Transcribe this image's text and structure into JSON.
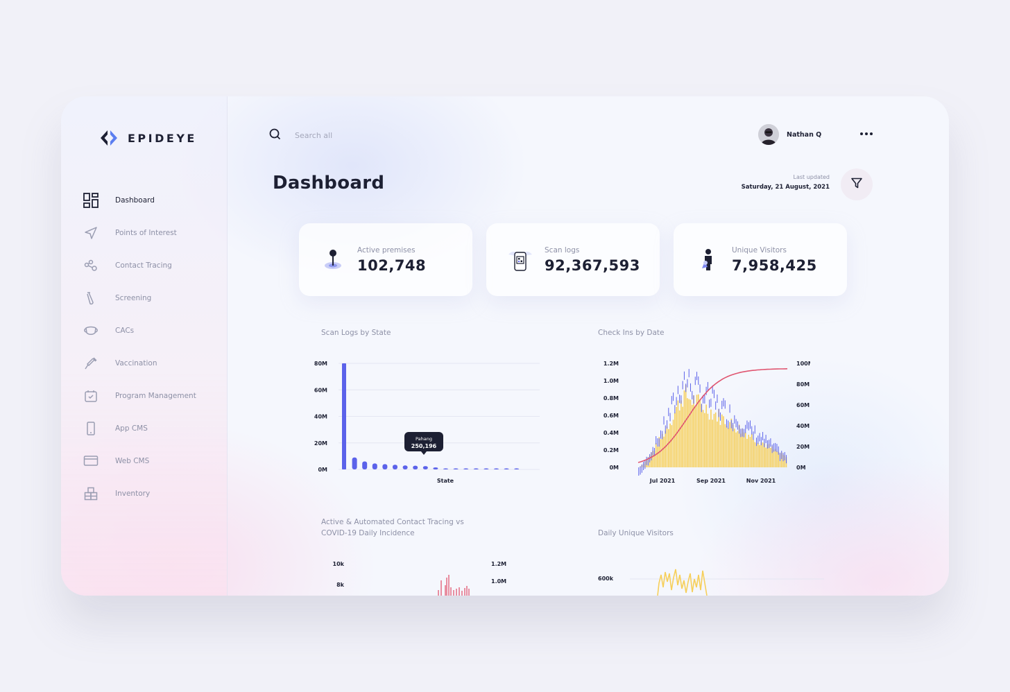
{
  "app": {
    "name": "EPIDEYE"
  },
  "sidebar": {
    "items": [
      {
        "label": "Dashboard",
        "icon": "dashboard-grid-icon",
        "active": true
      },
      {
        "label": "Points of Interest",
        "icon": "send-arrow-icon"
      },
      {
        "label": "Contact Tracing",
        "icon": "share-nodes-icon"
      },
      {
        "label": "Screening",
        "icon": "test-tube-icon"
      },
      {
        "label": "CACs",
        "icon": "face-mask-icon"
      },
      {
        "label": "Vaccination",
        "icon": "syringe-icon"
      },
      {
        "label": "Program Management",
        "icon": "calendar-check-icon"
      },
      {
        "label": "App CMS",
        "icon": "mobile-icon"
      },
      {
        "label": "Web CMS",
        "icon": "browser-window-icon"
      },
      {
        "label": "Inventory",
        "icon": "boxes-icon"
      }
    ]
  },
  "header": {
    "search_placeholder": "Search all",
    "user_name": "Nathan Q"
  },
  "page": {
    "title": "Dashboard",
    "last_updated_label": "Last updated",
    "last_updated_date": "Saturday, 21 August, 2021"
  },
  "stats": [
    {
      "label": "Active premises",
      "value": "102,748",
      "icon": "map-pin-icon"
    },
    {
      "label": "Scan logs",
      "value": "92,367,593",
      "icon": "qr-scan-icon"
    },
    {
      "label": "Unique Visitors",
      "value": "7,958,425",
      "icon": "visitor-person-icon"
    }
  ],
  "sections": {
    "scan_logs": "Scan Logs by State",
    "check_ins": "Check Ins by Date",
    "contact_tracing": [
      "Active & Automated Contact Tracing vs",
      "COVID-19 Daily Incidence"
    ],
    "daily_visitors": "Daily Unique Visitors"
  },
  "colors": {
    "blue": "#5b62ea",
    "yellow": "#f6cf5a",
    "red": "#e05570",
    "accent": "#1d2033"
  },
  "chart_data": [
    {
      "type": "bar",
      "title": "Scan Logs by State",
      "xlabel": "State",
      "ylim": [
        0,
        80000000
      ],
      "yticks": [
        "0M",
        "20M",
        "40M",
        "60M",
        "80M"
      ],
      "values": [
        80000000,
        9000000,
        6000000,
        4500000,
        4000000,
        3500000,
        3000000,
        2800000,
        2500000,
        1500000,
        800000,
        600000,
        500000,
        400000,
        300000,
        250196,
        200000,
        150000
      ],
      "tooltip": {
        "label": "Pahang",
        "value": "250,196"
      }
    },
    {
      "type": "bar",
      "title": "Check Ins by Date",
      "xticks": [
        "Jul 2021",
        "Sep 2021",
        "Nov 2021"
      ],
      "yticks_left": [
        "0M",
        "0.2M",
        "0.4M",
        "0.6M",
        "0.8M",
        "1.0M",
        "1.2M"
      ],
      "yticks_right": [
        "0M",
        "20M",
        "40M",
        "60M",
        "80M",
        "100M"
      ],
      "ylim_left": [
        0,
        1200000
      ],
      "ylim_right": [
        0,
        100000000
      ],
      "series": [
        {
          "type": "bar",
          "color": "#5b62ea",
          "peak": 1200000
        },
        {
          "type": "bar",
          "color": "#f6cf5a",
          "peak": 1000000
        },
        {
          "type": "line",
          "color": "#e05570",
          "start": 0,
          "end": 95000000
        }
      ]
    },
    {
      "type": "bar",
      "title": "Active & Automated Contact Tracing vs COVID-19 Daily Incidence",
      "yticks_left": [
        "8k",
        "10k"
      ],
      "yticks_right": [
        "1.0M",
        "1.2M"
      ]
    },
    {
      "type": "line",
      "title": "Daily Unique Visitors",
      "yticks": [
        "600k"
      ]
    }
  ]
}
